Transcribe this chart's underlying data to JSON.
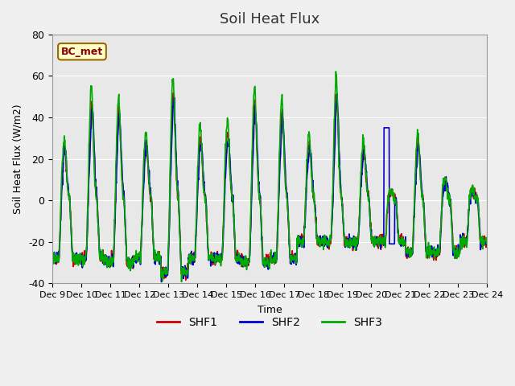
{
  "title": "Soil Heat Flux",
  "xlabel": "Time",
  "ylabel": "Soil Heat Flux (W/m2)",
  "ylim": [
    -40,
    80
  ],
  "background_color": "#f0f0f0",
  "plot_bg_color": "#e8e8e8",
  "shf1_color": "#cc0000",
  "shf2_color": "#0000cc",
  "shf3_color": "#00aa00",
  "annotation_text": "BC_met",
  "annotation_bg": "#ffffcc",
  "annotation_border": "#996600",
  "tick_dates": [
    "Dec 9",
    "Dec 10",
    "Dec 11",
    "Dec 12",
    "Dec 13",
    "Dec 14",
    "Dec 15",
    "Dec 16",
    "Dec 17",
    "Dec 18",
    "Dec 19",
    "Dec 20",
    "Dec 21",
    "Dec 22",
    "Dec 23",
    "Dec 24"
  ],
  "line_width": 1.2,
  "legend_labels": [
    "SHF1",
    "SHF2",
    "SHF3"
  ]
}
